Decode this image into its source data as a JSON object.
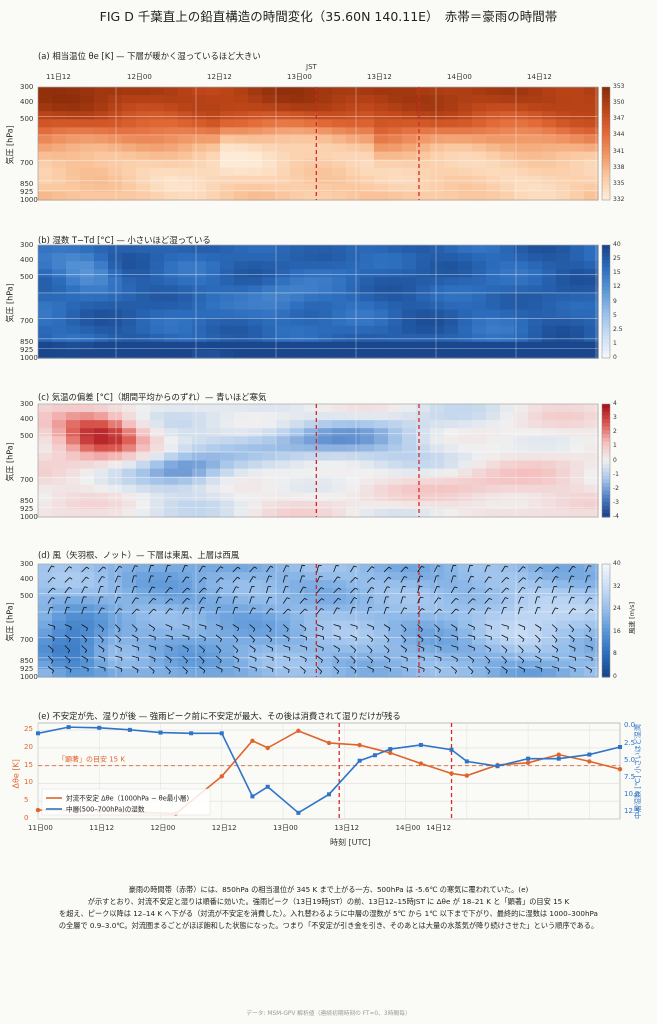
{
  "figure": {
    "title": "FIG D  千葉直上の鉛直構造の時間変化（35.60N 140.11E）　赤帯＝豪雨の時間帯",
    "caption": [
      "豪雨の時間帯（赤帯）には、850hPa の相当温位が 345 K まで上がる一方、500hPa は -5.6℃ の寒気に覆われていた。(e)",
      "が示すとおり、対流不安定と湿りは順番に効いた。強雨ピーク（13日19時JST）の前、13日12–15時JST に Δθe が 18–21 K と「顕著」の目安 15 K",
      "を超え、ピーク以降は 12–14 K へ下がる（対流が不安定を消費した）。入れ替わるように中層の湿数が 5℃ から 1℃ 以下まで下がり、最終的に湿数は 1000–300hPa",
      "の全層で 0.9–3.0℃。対流圏まるごとがほぼ飽和した状態になった。つまり「不安定が引き金を引き、そのあとは大量の水蒸気が降り続けさせた」という順序である。"
    ],
    "footer": "データ: MSM-GPV 解析値（連続初期時刻の FT=0、3時間毎）"
  },
  "axes": {
    "jst_label": "JST",
    "jst_ticks": [
      "11日12",
      "12日00",
      "12日12",
      "13日00",
      "13日12",
      "14日00",
      "14日12"
    ],
    "utc_ticks": [
      "11日00",
      "11日12",
      "12日00",
      "12日12",
      "13日00",
      "13日12",
      "14日00",
      "14日12"
    ],
    "xlabel": "時刻 [UTC]",
    "ylabel": "気圧 [hPa]",
    "pressure_ticks": [
      "300",
      "400",
      "500",
      "700",
      "850",
      "925",
      "1000"
    ]
  },
  "chart_data": [
    {
      "type": "heatmap",
      "title": "(a) 相当温位 θe [K] — 下層が暖かく湿っているほど大きい",
      "colorbar_ticks": [
        "353",
        "350",
        "347",
        "344",
        "341",
        "338",
        "335",
        "332"
      ],
      "colormap": "oranges",
      "heavy_rain_band_utc_hours": [
        59,
        81
      ]
    },
    {
      "type": "heatmap",
      "title": "(b) 湿数 T−Td [°C] — 小さいほど湿っている",
      "colorbar_ticks": [
        "40",
        "25",
        "15",
        "12",
        "9",
        "5",
        "2.5",
        "1",
        "0"
      ],
      "colormap": "blues"
    },
    {
      "type": "heatmap",
      "title": "(c) 気温の偏差 [°C]（期間平均からのずれ）— 青いほど寒気",
      "colorbar_ticks": [
        "4",
        "3",
        "2",
        "1",
        "0",
        "-1",
        "-2",
        "-3",
        "-4"
      ],
      "colormap": "red-blue",
      "heavy_rain_band_utc_hours": [
        59,
        81
      ]
    },
    {
      "type": "heatmap",
      "title": "(d) 風（矢羽根、ノット）— 下層は東風、上層は西風",
      "colorbar_label": "風速 [m/s]",
      "colorbar_ticks": [
        "40",
        "32",
        "24",
        "16",
        "8",
        "0"
      ],
      "colormap": "blues"
    },
    {
      "type": "line",
      "title": "(e) 不安定が先、湿りが後 — 強雨ピーク前に不安定が最大、その後は消費されて湿りだけが残る",
      "ylabel_left": "Δθe [K]",
      "ylabel_right": "中層湿数 [℃] 小さいほど湿潤",
      "ylim_left": [
        0,
        27
      ],
      "ylim_right": [
        13.5,
        -0.5
      ],
      "yticks_left": [
        "0",
        "5",
        "10",
        "15",
        "20",
        "25"
      ],
      "yticks_right": [
        "0.0",
        "2.5",
        "5.0",
        "7.5",
        "10.0",
        "12.5"
      ],
      "threshold": {
        "value": 15,
        "label": "「顕著」の目安 15 K"
      },
      "heavy_rain_band_utc_hours": [
        59,
        81
      ],
      "legend": [
        "対流不安定 Δθe（1000hPa − θe最小層）",
        "中層(500–700hPa)の湿数"
      ],
      "series": [
        {
          "name": "対流不安定 Δθe（1000hPa − θe最小層）",
          "color": "#e0642c",
          "x": [
            0,
            12,
            27,
            36,
            42,
            45,
            51,
            57,
            63,
            69,
            75,
            81,
            84,
            90,
            96,
            102,
            108,
            114
          ],
          "values": [
            2.5,
            2.3,
            1.5,
            12,
            22,
            20,
            24.8,
            21.4,
            20.8,
            18.6,
            15.6,
            12.8,
            12.2,
            15.2,
            15.8,
            18.1,
            16.2,
            14.0
          ]
        },
        {
          "name": "中層(500–700hPa)の湿数",
          "color": "#2f74c8",
          "x": [
            0,
            6,
            12,
            18,
            24,
            30,
            36,
            42,
            45,
            51,
            57,
            63,
            66,
            69,
            75,
            81,
            84,
            90,
            96,
            102,
            108,
            114
          ],
          "values": [
            1.0,
            0.1,
            0.2,
            0.5,
            0.9,
            1.0,
            1.0,
            10.2,
            8.8,
            12.6,
            9.9,
            5.0,
            4.2,
            3.3,
            2.7,
            3.4,
            5.1,
            5.8,
            4.7,
            4.7,
            4.1,
            3.0
          ]
        }
      ]
    }
  ]
}
